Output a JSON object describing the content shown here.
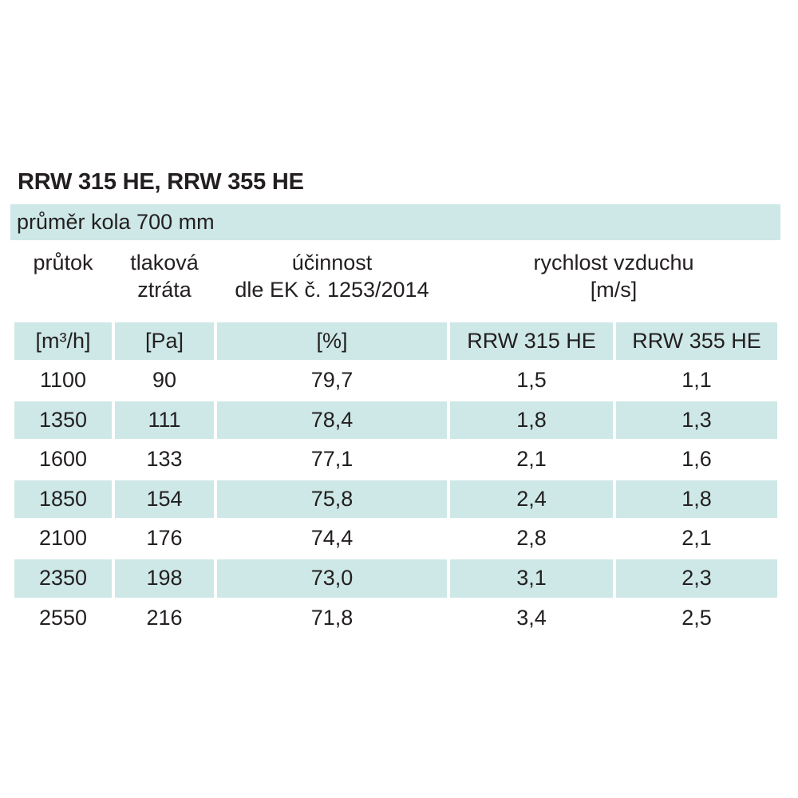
{
  "title": "RRW 315 HE, RRW 355 HE",
  "subtitle": "průměr kola 700 mm",
  "headers": {
    "flow": "průtok",
    "pressure_line1": "tlaková",
    "pressure_line2": "ztráta",
    "efficiency_line1": "účinnost",
    "efficiency_line2": "dle EK č. 1253/2014",
    "speed_line1": "rychlost vzduchu",
    "speed_line2": "[m/s]"
  },
  "units": {
    "flow": "[m³/h]",
    "pressure": "[Pa]",
    "efficiency": "[%]",
    "model1": "RRW 315 HE",
    "model2": "RRW 355 HE"
  },
  "rows": [
    {
      "flow": "1100",
      "pressure": "90",
      "efficiency": "79,7",
      "speed1": "1,5",
      "speed2": "1,1"
    },
    {
      "flow": "1350",
      "pressure": "111",
      "efficiency": "78,4",
      "speed1": "1,8",
      "speed2": "1,3"
    },
    {
      "flow": "1600",
      "pressure": "133",
      "efficiency": "77,1",
      "speed1": "2,1",
      "speed2": "1,6"
    },
    {
      "flow": "1850",
      "pressure": "154",
      "efficiency": "75,8",
      "speed1": "2,4",
      "speed2": "1,8"
    },
    {
      "flow": "2100",
      "pressure": "176",
      "efficiency": "74,4",
      "speed1": "2,8",
      "speed2": "2,1"
    },
    {
      "flow": "2350",
      "pressure": "198",
      "efficiency": "73,0",
      "speed1": "3,1",
      "speed2": "2,3"
    },
    {
      "flow": "2550",
      "pressure": "216",
      "efficiency": "71,8",
      "speed1": "3,4",
      "speed2": "2,5"
    }
  ]
}
